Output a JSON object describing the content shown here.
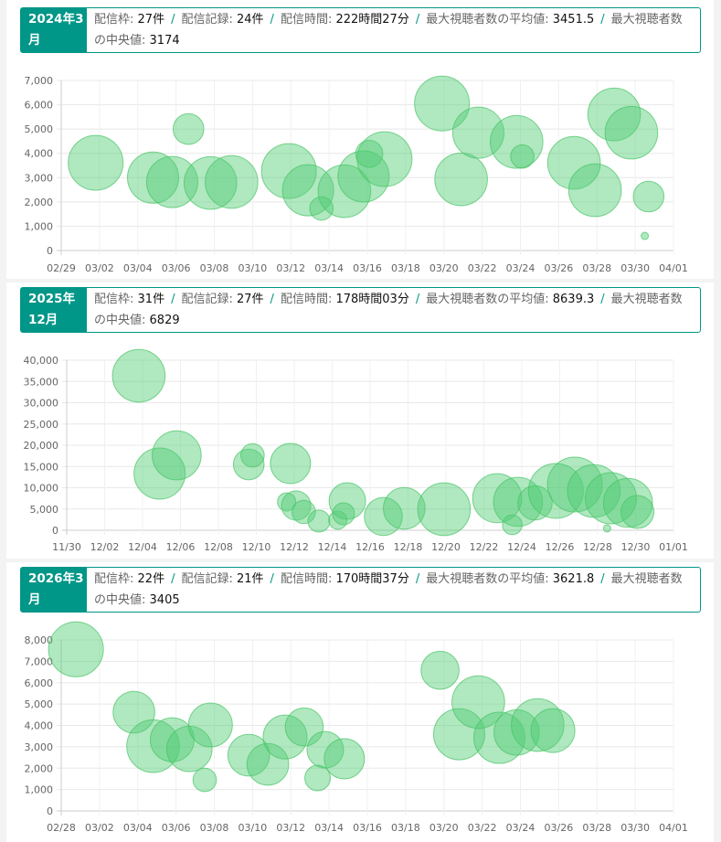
{
  "months": [
    {
      "label": "2024年3月",
      "stats": [
        {
          "label": "配信枠:",
          "value": "27件"
        },
        {
          "label": "配信記録:",
          "value": "24件"
        },
        {
          "label": "配信時間:",
          "value": "222時間27分"
        },
        {
          "label": "最大視聴者数の平均値:",
          "value": "3451.5"
        },
        {
          "label": "最大視聴者数の中央値:",
          "value": "3174"
        }
      ],
      "chart_data": {
        "type": "scatter",
        "x_ticks": [
          "02/29",
          "03/02",
          "03/04",
          "03/06",
          "03/08",
          "03/10",
          "03/12",
          "03/14",
          "03/16",
          "03/18",
          "03/20",
          "03/22",
          "03/24",
          "03/26",
          "03/28",
          "03/30",
          "04/01"
        ],
        "x_range_days": [
          0,
          32
        ],
        "y_ticks": [
          "0",
          "1,000",
          "2,000",
          "3,000",
          "4,000",
          "5,000",
          "6,000",
          "7,000"
        ],
        "ylim": [
          0,
          7000
        ],
        "points": [
          {
            "x": 1.8,
            "y": 3610,
            "size": 7.5
          },
          {
            "x": 4.8,
            "y": 3000,
            "size": 7
          },
          {
            "x": 5.8,
            "y": 2820,
            "size": 7
          },
          {
            "x": 6.65,
            "y": 5000,
            "size": 4.2
          },
          {
            "x": 7.8,
            "y": 2780,
            "size": 7.2
          },
          {
            "x": 8.9,
            "y": 2820,
            "size": 7.2
          },
          {
            "x": 11.9,
            "y": 3270,
            "size": 7.5
          },
          {
            "x": 12.9,
            "y": 2480,
            "size": 7
          },
          {
            "x": 13.6,
            "y": 1730,
            "size": 3.2
          },
          {
            "x": 14.8,
            "y": 2440,
            "size": 7.2
          },
          {
            "x": 15.8,
            "y": 3050,
            "size": 7
          },
          {
            "x": 16.1,
            "y": 3980,
            "size": 3.7
          },
          {
            "x": 16.9,
            "y": 3760,
            "size": 7.5
          },
          {
            "x": 19.9,
            "y": 6050,
            "size": 7.5
          },
          {
            "x": 20.9,
            "y": 2930,
            "size": 7.2
          },
          {
            "x": 21.8,
            "y": 4850,
            "size": 7
          },
          {
            "x": 23.8,
            "y": 4470,
            "size": 7.2
          },
          {
            "x": 24.1,
            "y": 3870,
            "size": 3.2
          },
          {
            "x": 26.8,
            "y": 3610,
            "size": 7.2
          },
          {
            "x": 27.9,
            "y": 2480,
            "size": 7.2
          },
          {
            "x": 28.9,
            "y": 5600,
            "size": 7.2
          },
          {
            "x": 29.8,
            "y": 4850,
            "size": 7.2
          },
          {
            "x": 30.7,
            "y": 2220,
            "size": 4.2
          },
          {
            "x": 30.5,
            "y": 600,
            "size": 1
          }
        ]
      }
    },
    {
      "label": "2025年12月",
      "stats": [
        {
          "label": "配信枠:",
          "value": "31件"
        },
        {
          "label": "配信記録:",
          "value": "27件"
        },
        {
          "label": "配信時間:",
          "value": "178時間03分"
        },
        {
          "label": "最大視聴者数の平均値:",
          "value": "8639.3"
        },
        {
          "label": "最大視聴者数の中央値:",
          "value": "6829"
        }
      ],
      "chart_data": {
        "type": "scatter",
        "x_ticks": [
          "11/30",
          "12/02",
          "12/04",
          "12/06",
          "12/08",
          "12/10",
          "12/12",
          "12/14",
          "12/16",
          "12/18",
          "12/20",
          "12/22",
          "12/24",
          "12/26",
          "12/28",
          "12/30",
          "01/01"
        ],
        "x_range_days": [
          0,
          32
        ],
        "y_ticks": [
          "0",
          "5,000",
          "10,000",
          "15,000",
          "20,000",
          "25,000",
          "30,000",
          "35,000",
          "40,000"
        ],
        "ylim": [
          0,
          40000
        ],
        "points": [
          {
            "x": 3.8,
            "y": 36340,
            "size": 7.2
          },
          {
            "x": 4.9,
            "y": 13330,
            "size": 7
          },
          {
            "x": 5.8,
            "y": 17630,
            "size": 6.7
          },
          {
            "x": 9.6,
            "y": 15480,
            "size": 4.2
          },
          {
            "x": 9.8,
            "y": 17630,
            "size": 3.2
          },
          {
            "x": 11.8,
            "y": 15700,
            "size": 5.5
          },
          {
            "x": 11.6,
            "y": 6670,
            "size": 2.5
          },
          {
            "x": 12.1,
            "y": 5810,
            "size": 4
          },
          {
            "x": 12.5,
            "y": 4300,
            "size": 3.2
          },
          {
            "x": 13.3,
            "y": 2150,
            "size": 3
          },
          {
            "x": 14.3,
            "y": 2370,
            "size": 2.5
          },
          {
            "x": 14.8,
            "y": 6880,
            "size": 5
          },
          {
            "x": 14.6,
            "y": 3870,
            "size": 3
          },
          {
            "x": 16.7,
            "y": 3230,
            "size": 5.2
          },
          {
            "x": 17.8,
            "y": 5160,
            "size": 5.7
          },
          {
            "x": 19.9,
            "y": 4950,
            "size": 7.2
          },
          {
            "x": 22.7,
            "y": 7530,
            "size": 6.7
          },
          {
            "x": 23.5,
            "y": 1290,
            "size": 2.7
          },
          {
            "x": 23.8,
            "y": 6670,
            "size": 6.7
          },
          {
            "x": 24.7,
            "y": 6450,
            "size": 4.7
          },
          {
            "x": 25.8,
            "y": 9250,
            "size": 7.5
          },
          {
            "x": 26.8,
            "y": 10750,
            "size": 7.5
          },
          {
            "x": 27.8,
            "y": 9250,
            "size": 7.2
          },
          {
            "x": 28.5,
            "y": 430,
            "size": 1
          },
          {
            "x": 28.7,
            "y": 7530,
            "size": 7
          },
          {
            "x": 29.6,
            "y": 6450,
            "size": 6.7
          },
          {
            "x": 30.1,
            "y": 4300,
            "size": 4.5
          }
        ]
      }
    },
    {
      "label": "2026年3月",
      "stats": [
        {
          "label": "配信枠:",
          "value": "22件"
        },
        {
          "label": "配信記録:",
          "value": "21件"
        },
        {
          "label": "配信時間:",
          "value": "170時間37分"
        },
        {
          "label": "最大視聴者数の平均値:",
          "value": "3621.8"
        },
        {
          "label": "最大視聴者数の中央値:",
          "value": "3405"
        }
      ],
      "chart_data": {
        "type": "scatter",
        "x_ticks": [
          "02/28",
          "03/02",
          "03/04",
          "03/06",
          "03/08",
          "03/10",
          "03/12",
          "03/14",
          "03/16",
          "03/18",
          "03/20",
          "03/22",
          "03/24",
          "03/26",
          "03/28",
          "03/30",
          "04/01"
        ],
        "x_range_days": [
          0,
          32
        ],
        "y_ticks": [
          "0",
          "1,000",
          "2,000",
          "3,000",
          "4,000",
          "5,000",
          "6,000",
          "7,000",
          "8,000"
        ],
        "ylim": [
          0,
          8000
        ],
        "points": [
          {
            "x": 0.77,
            "y": 7560,
            "size": 7.5
          },
          {
            "x": 3.8,
            "y": 4620,
            "size": 5.7
          },
          {
            "x": 4.8,
            "y": 3030,
            "size": 7.2
          },
          {
            "x": 5.8,
            "y": 3330,
            "size": 6
          },
          {
            "x": 6.7,
            "y": 2900,
            "size": 6.2
          },
          {
            "x": 7.8,
            "y": 4020,
            "size": 6
          },
          {
            "x": 7.5,
            "y": 1450,
            "size": 3.2
          },
          {
            "x": 9.8,
            "y": 2610,
            "size": 5.7
          },
          {
            "x": 10.8,
            "y": 2180,
            "size": 5.7
          },
          {
            "x": 11.7,
            "y": 3460,
            "size": 6
          },
          {
            "x": 12.7,
            "y": 3930,
            "size": 5.2
          },
          {
            "x": 13.4,
            "y": 1540,
            "size": 3.5
          },
          {
            "x": 13.8,
            "y": 2860,
            "size": 5
          },
          {
            "x": 14.8,
            "y": 2440,
            "size": 5.5
          },
          {
            "x": 19.8,
            "y": 6580,
            "size": 5.2
          },
          {
            "x": 20.8,
            "y": 3590,
            "size": 7
          },
          {
            "x": 21.8,
            "y": 5090,
            "size": 7.2
          },
          {
            "x": 22.9,
            "y": 3420,
            "size": 7
          },
          {
            "x": 23.8,
            "y": 3670,
            "size": 6.2
          },
          {
            "x": 24.9,
            "y": 4020,
            "size": 7.2
          },
          {
            "x": 25.7,
            "y": 3760,
            "size": 6
          }
        ]
      }
    }
  ],
  "colors": {
    "accent": "#009688",
    "bubble_fill": "rgba(80,205,115,0.45)",
    "bubble_stroke": "rgba(70,195,100,0.7)"
  }
}
